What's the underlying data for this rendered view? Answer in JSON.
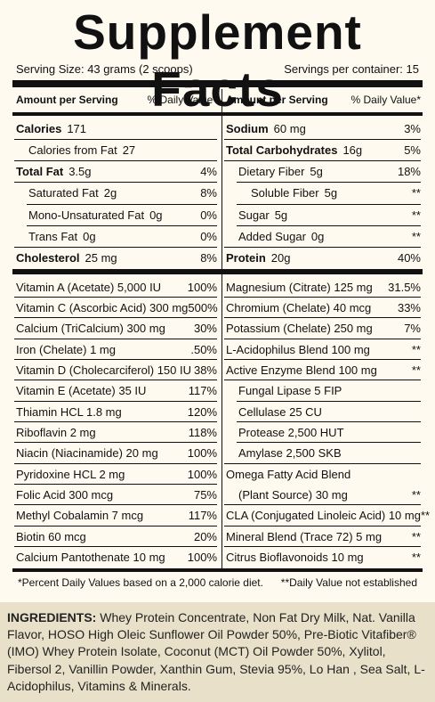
{
  "title": "Supplement Facts",
  "serving": {
    "size": "Serving Size:  43 grams (2 scoops)",
    "per_container": "Servings per container:  15"
  },
  "headers": {
    "left_amount": "Amount per Serving",
    "left_dv": "% Daily Value*",
    "right_amount": "Amount per Serving",
    "right_dv": "% Daily Value*"
  },
  "macros_left": [
    {
      "label": "Calories",
      "amount": "171",
      "dv": "",
      "bold": true,
      "indent": 0
    },
    {
      "label": "Calories from Fat",
      "amount": "27",
      "dv": "",
      "bold": false,
      "indent": 1
    },
    {
      "label": "Total Fat",
      "amount": "3.5g",
      "dv": "4%",
      "bold": true,
      "indent": 0
    },
    {
      "label": "Saturated Fat",
      "amount": "2g",
      "dv": "8%",
      "bold": false,
      "indent": 1
    },
    {
      "label": "Mono-Unsaturated Fat",
      "amount": "0g",
      "dv": "0%",
      "bold": false,
      "indent": 1
    },
    {
      "label": "Trans Fat",
      "amount": "0g",
      "dv": "0%",
      "bold": false,
      "indent": 1
    },
    {
      "label": "Cholesterol",
      "amount": "25 mg",
      "dv": "8%",
      "bold": true,
      "indent": 0
    }
  ],
  "macros_right": [
    {
      "label": "Sodium",
      "amount": "60 mg",
      "dv": "3%",
      "bold": true,
      "indent": 0
    },
    {
      "label": "Total Carbohydrates",
      "amount": "16g",
      "dv": "5%",
      "bold": true,
      "indent": 0
    },
    {
      "label": "Dietary Fiber",
      "amount": "5g",
      "dv": "18%",
      "bold": false,
      "indent": 1
    },
    {
      "label": "Soluble Fiber",
      "amount": "5g",
      "dv": "**",
      "bold": false,
      "indent": 2
    },
    {
      "label": "Sugar",
      "amount": "5g",
      "dv": "**",
      "bold": false,
      "indent": 1
    },
    {
      "label": "Added Sugar",
      "amount": "0g",
      "dv": "**",
      "bold": false,
      "indent": 1
    },
    {
      "label": "Protein",
      "amount": "20g",
      "dv": "40%",
      "bold": true,
      "indent": 0
    }
  ],
  "vitamins_left": [
    {
      "label": "Vitamin A (Acetate) 5,000 IU",
      "dv": "100%"
    },
    {
      "label": "Vitamin C (Ascorbic Acid) 300 mg",
      "dv": "500%"
    },
    {
      "label": "Calcium (TriCalcium) 300 mg",
      "dv": "30%"
    },
    {
      "label": "Iron (Chelate) 1 mg",
      "dv": ".50%"
    },
    {
      "label": "Vitamin D (Cholecarciferol) 150 IU",
      "dv": "38%"
    },
    {
      "label": "Vitamin E (Acetate) 35 IU",
      "dv": "117%"
    },
    {
      "label": "Thiamin HCL 1.8 mg",
      "dv": "120%"
    },
    {
      "label": "Riboflavin 2 mg",
      "dv": "118%"
    },
    {
      "label": "Niacin (Niacinamide) 20 mg",
      "dv": "100%"
    },
    {
      "label": "Pyridoxine HCL 2 mg",
      "dv": "100%"
    },
    {
      "label": "Folic Acid 300 mcg",
      "dv": "75%"
    },
    {
      "label": "Methyl Cobalamin 7 mcg",
      "dv": "117%"
    },
    {
      "label": "Biotin 60 mcg",
      "dv": "20%"
    },
    {
      "label": "Calcium Pantothenate 10 mg",
      "dv": "100%"
    }
  ],
  "vitamins_right": [
    {
      "label": "Magnesium (Citrate) 125 mg",
      "dv": "31.5%"
    },
    {
      "label": "Chromium (Chelate) 40 mcg",
      "dv": "33%"
    },
    {
      "label": "Potassium (Chelate) 250 mg",
      "dv": "7%"
    },
    {
      "label": "L-Acidophilus Blend 100 mg",
      "dv": "**"
    },
    {
      "label": "Active Enzyme Blend 100 mg",
      "dv": "**"
    },
    {
      "label": "Fungal Lipase 5 FIP",
      "dv": ""
    },
    {
      "label": "Cellulase 25 CU",
      "dv": ""
    },
    {
      "label": "Protease 2,500 HUT",
      "dv": ""
    },
    {
      "label": "Amylase 2,500 SKB",
      "dv": ""
    },
    {
      "label": "Omega Fatty Acid Blend",
      "dv": ""
    },
    {
      "label": "(Plant Source) 30 mg",
      "dv": "**"
    },
    {
      "label": "CLA (Conjugated Linoleic Acid) 10 mg",
      "dv": "**"
    },
    {
      "label": "Mineral Blend (Trace 72) 5 mg",
      "dv": "**"
    },
    {
      "label": "Citrus Bioflavonoids 10 mg",
      "dv": "**"
    }
  ],
  "footnotes": {
    "left": "*Percent Daily Values based on a 2,000 calorie diet.",
    "right": "**Daily Value not established"
  },
  "ingredients": {
    "heading": "INGREDIENTS:",
    "text": "Whey Protein Concentrate, Non Fat Dry Milk, Nat. Vanilla Flavor, HOSO High Oleic Sunflower Oil Powder 50%, Pre-Biotic Vitafiber® (IMO) Whey Protein Isolate, Coconut (MCT) Oil Powder 50%, Xylitol, Fibersol 2, Vanillin Powder, Xanthin Gum, Stevia 95%, Lo Han , Sea Salt, L-Acidophilus, Vitamins & Minerals."
  }
}
